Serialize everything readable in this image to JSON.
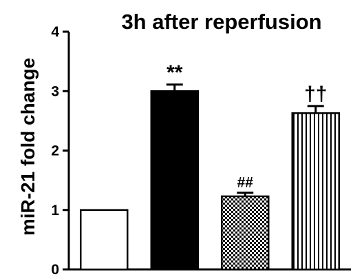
{
  "chart_data": {
    "type": "bar",
    "title": "3h after reperfusion",
    "xlabel": "",
    "ylabel": "miR-21 fold change",
    "ylim": [
      0,
      4
    ],
    "yticks": [
      0,
      1,
      2,
      3,
      4
    ],
    "grid": false,
    "bars": [
      {
        "value": 1.0,
        "error": 0.0,
        "pattern": "white",
        "annotation": ""
      },
      {
        "value": 3.0,
        "error": 0.11,
        "pattern": "black",
        "annotation": "**"
      },
      {
        "value": 1.23,
        "error": 0.06,
        "pattern": "checkered",
        "annotation": "##"
      },
      {
        "value": 2.63,
        "error": 0.12,
        "pattern": "vertical-stripes",
        "annotation": "††"
      }
    ]
  }
}
